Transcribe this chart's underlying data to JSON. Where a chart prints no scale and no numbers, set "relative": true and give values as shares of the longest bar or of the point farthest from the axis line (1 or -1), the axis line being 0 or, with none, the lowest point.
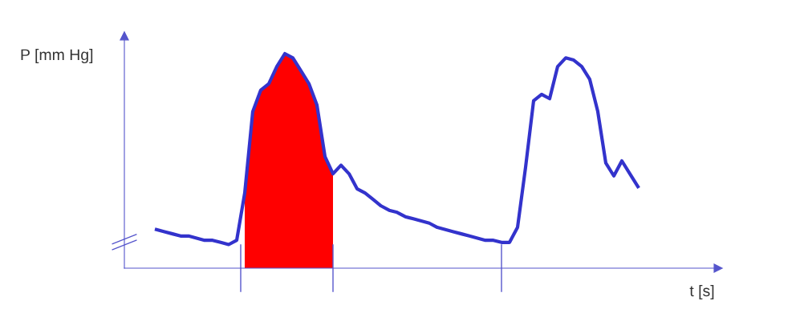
{
  "chart_data": {
    "type": "line",
    "relative": true,
    "xlabel": "t [s]",
    "ylabel": "P [mm Hg]",
    "categories": [
      null,
      null,
      null,
      null,
      null,
      null,
      null,
      null,
      null,
      null,
      null,
      null,
      null,
      null,
      null,
      null,
      null,
      null,
      null,
      null,
      null,
      null,
      null,
      null,
      null,
      null,
      null,
      null,
      null,
      null,
      null,
      null,
      null,
      null,
      null,
      null,
      null,
      null,
      null,
      null,
      null,
      null,
      null,
      null,
      null,
      null,
      null,
      null,
      null,
      null,
      null,
      null,
      null,
      null,
      null,
      null,
      null,
      null,
      null,
      null,
      null
    ],
    "legend": false,
    "marker": "none",
    "line_style": "solid",
    "series": [
      {
        "type": "area",
        "color": "#ff0000",
        "values": [
          null,
          null,
          null,
          null,
          null,
          null,
          null,
          null,
          null,
          null,
          null,
          0.35,
          0.73,
          0.83,
          0.86,
          0.94,
          1.0,
          0.98,
          0.92,
          0.86,
          0.76,
          0.52,
          0.44,
          null,
          null,
          null,
          null,
          null,
          null,
          null,
          null,
          null,
          null,
          null,
          null,
          null,
          null,
          null,
          null,
          null,
          null,
          null,
          null,
          null,
          null,
          null,
          null,
          null,
          null,
          null,
          null,
          null,
          null,
          null,
          null,
          null,
          null,
          null,
          null,
          null,
          null
        ]
      },
      {
        "color": "#3333cc",
        "values": [
          0.18,
          0.17,
          0.16,
          0.15,
          0.15,
          0.14,
          0.13,
          0.13,
          0.12,
          0.11,
          0.13,
          0.35,
          0.73,
          0.83,
          0.86,
          0.94,
          1.0,
          0.98,
          0.92,
          0.86,
          0.76,
          0.52,
          0.44,
          0.48,
          0.44,
          0.37,
          0.35,
          0.32,
          0.29,
          0.27,
          0.26,
          0.24,
          0.23,
          0.22,
          0.21,
          0.19,
          0.18,
          0.17,
          0.16,
          0.15,
          0.14,
          0.13,
          0.13,
          0.12,
          0.12,
          0.19,
          0.47,
          0.78,
          0.81,
          0.79,
          0.94,
          0.98,
          0.97,
          0.94,
          0.88,
          0.73,
          0.49,
          0.43,
          0.5,
          0.44,
          0.38
        ]
      }
    ]
  }
}
